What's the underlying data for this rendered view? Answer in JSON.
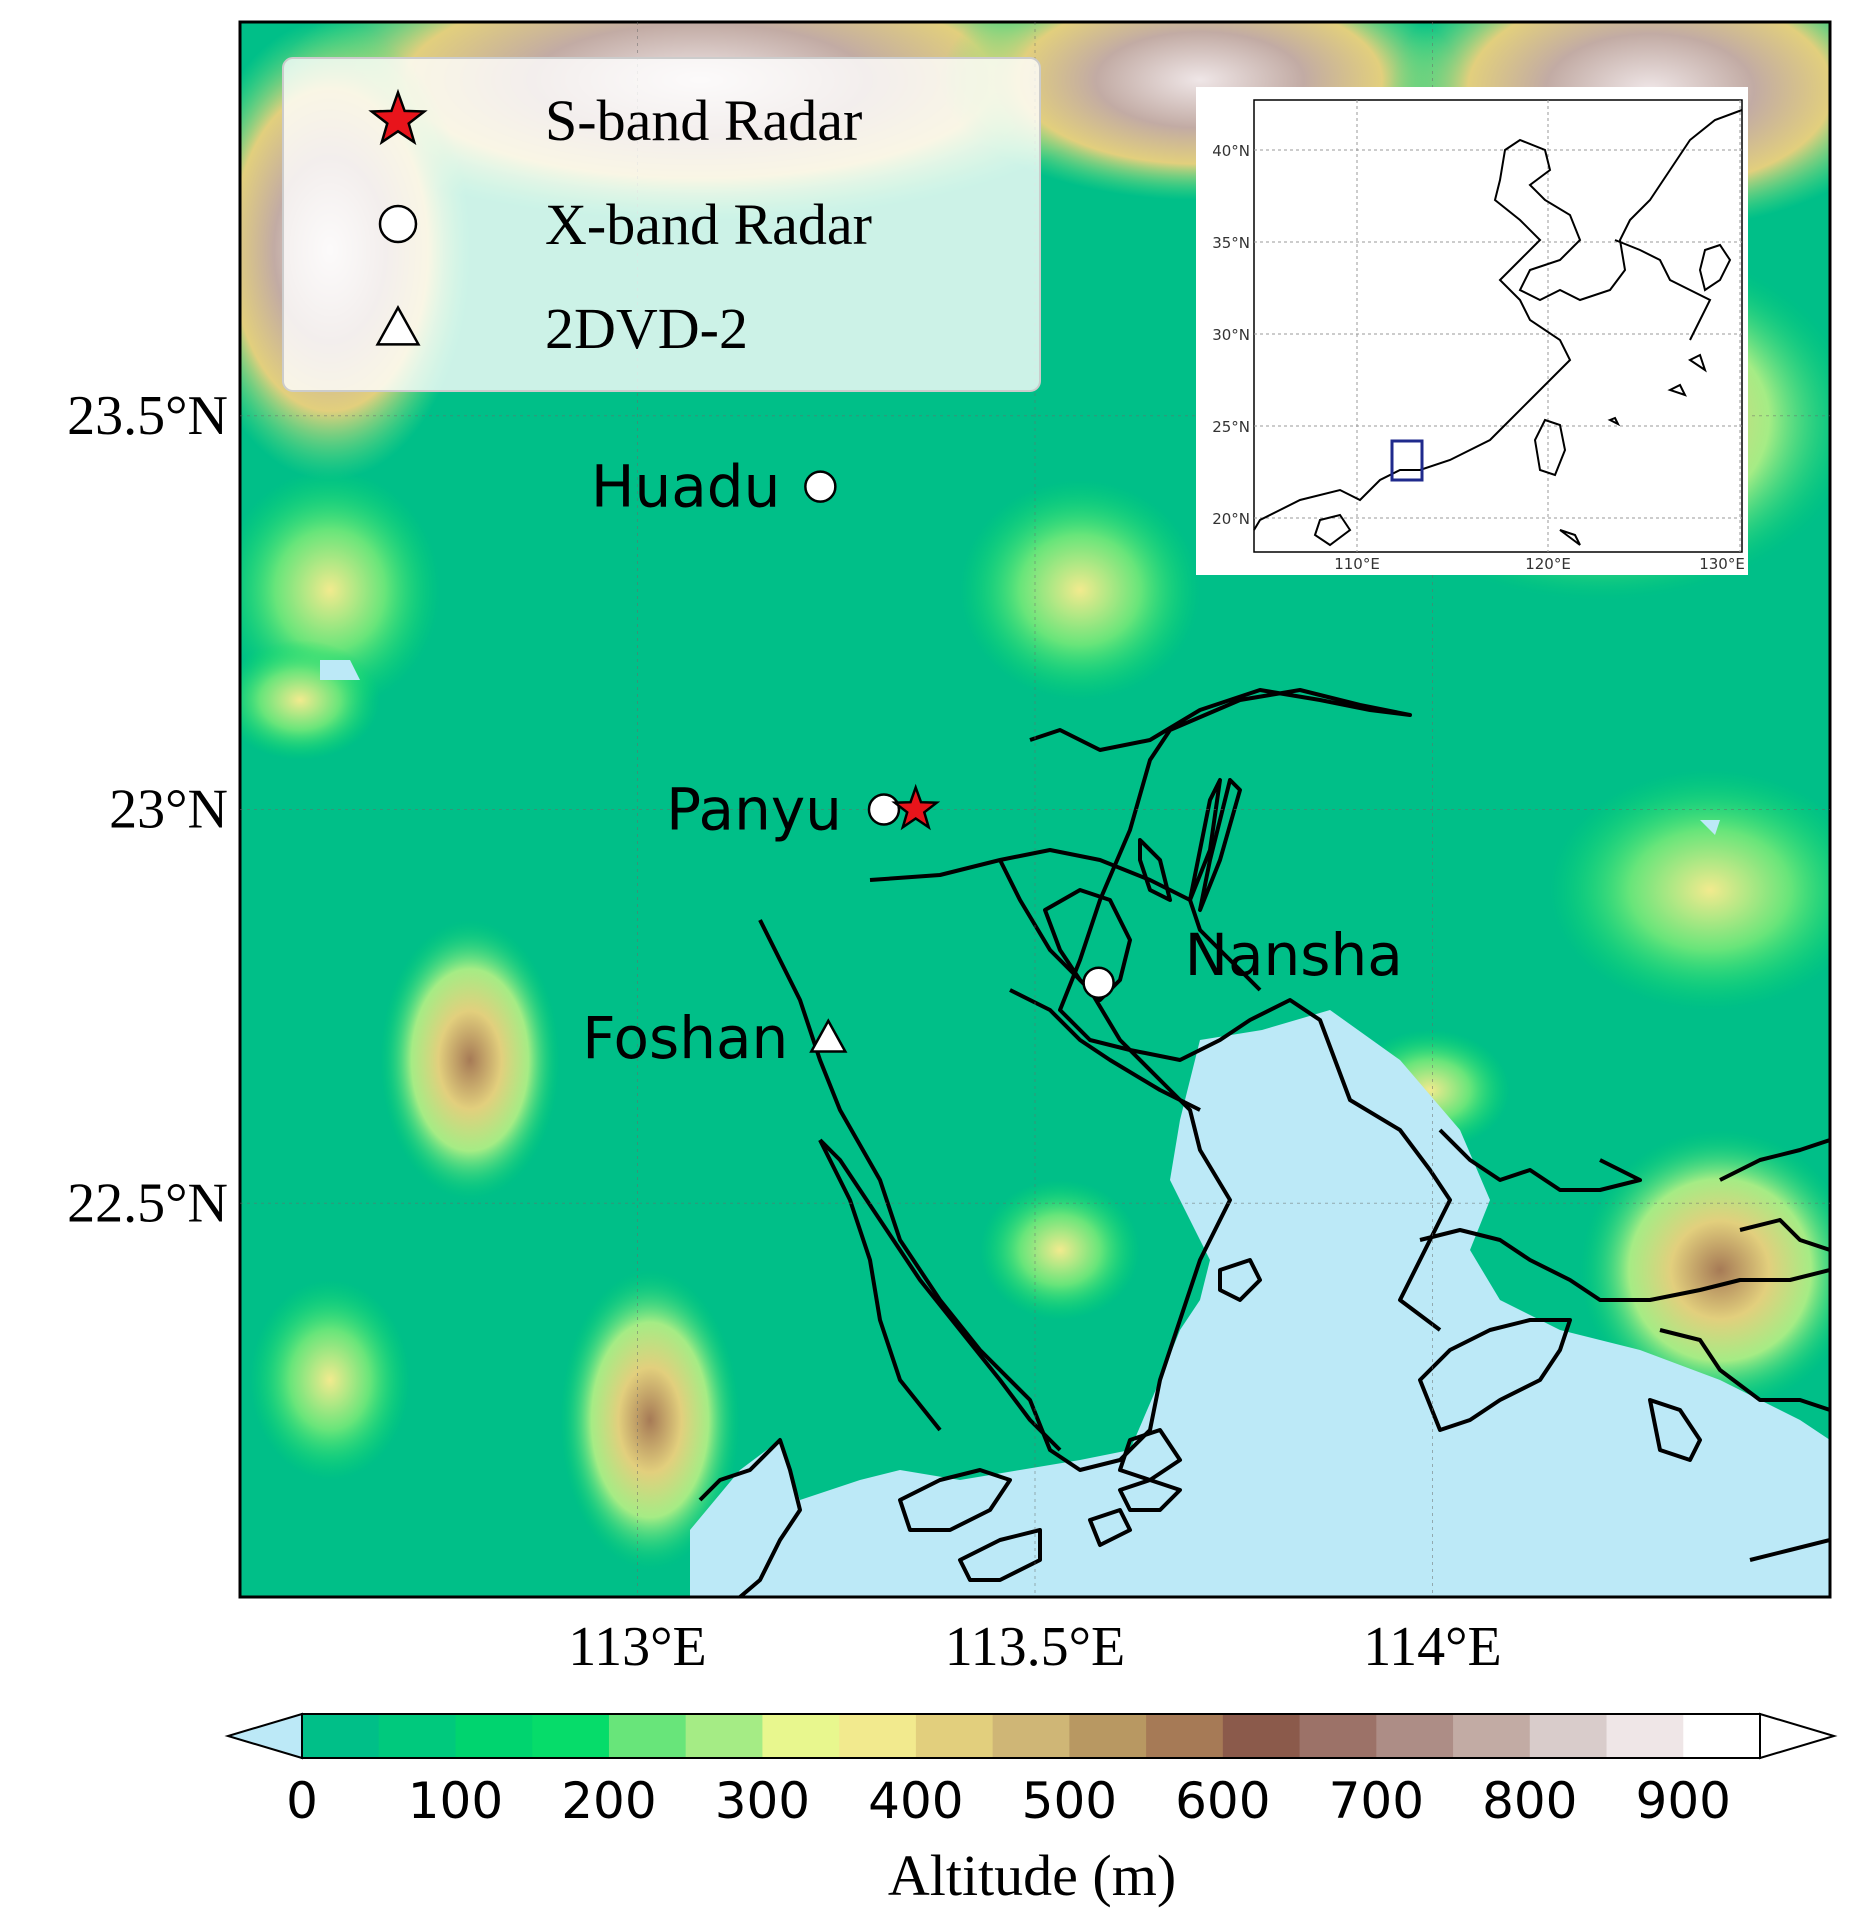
{
  "map": {
    "lat_ticks": [
      "23.5°N",
      "23°N",
      "22.5°N"
    ],
    "lon_ticks": [
      "113°E",
      "113.5°E",
      "114°E"
    ],
    "lat_tick_values": [
      23.5,
      23.0,
      22.5
    ],
    "lon_tick_values": [
      113.0,
      113.5,
      114.0
    ],
    "extent": {
      "lon_min": 112.5,
      "lon_max": 114.5,
      "lat_min": 22.0,
      "lat_max": 24.0
    },
    "land_color": "#00bf88",
    "water_color": "#bce9f7"
  },
  "legend": {
    "items": [
      {
        "label": "S-band Radar",
        "marker": "star",
        "color": "#e8141b"
      },
      {
        "label": "X-band Radar",
        "marker": "circle",
        "color": "#ffffff"
      },
      {
        "label": "2DVD-2",
        "marker": "triangle",
        "color": "#ffffff"
      }
    ]
  },
  "stations": [
    {
      "name": "Huadu",
      "type": "X-band Radar",
      "lon": 113.23,
      "lat": 23.41
    },
    {
      "name": "Panyu",
      "type": "X-band Radar",
      "lon": 113.31,
      "lat": 23.0
    },
    {
      "name": "S-band",
      "type": "S-band Radar",
      "lon": 113.35,
      "lat": 23.0
    },
    {
      "name": "Nansha",
      "type": "X-band Radar",
      "lon": 113.58,
      "lat": 22.78
    },
    {
      "name": "Foshan",
      "type": "2DVD-2",
      "lon": 113.24,
      "lat": 22.71
    }
  ],
  "station_labels": [
    "Huadu",
    "Panyu",
    "Nansha",
    "Foshan"
  ],
  "inset": {
    "lat_ticks": [
      "40°N",
      "35°N",
      "30°N",
      "25°N",
      "20°N"
    ],
    "lon_ticks": [
      "110°E",
      "120°E",
      "130°E"
    ],
    "box_color": "#1f2a8c"
  },
  "colorbar": {
    "ticks": [
      "0",
      "100",
      "200",
      "300",
      "400",
      "500",
      "600",
      "700",
      "800",
      "900"
    ],
    "label": "Altitude (m)",
    "colors": [
      "#00bf88",
      "#00c97d",
      "#00d46f",
      "#06dc6a",
      "#68e57a",
      "#a5ec85",
      "#e8f78e",
      "#f2ea8e",
      "#e2cf7d",
      "#cfb676",
      "#b89862",
      "#a67a56",
      "#8b5a4b",
      "#9c7268",
      "#ad8d86",
      "#c2aba4",
      "#d9cccb",
      "#efe6e7",
      "#ffffff"
    ],
    "under_color": "#bce9f7",
    "over_color": "#ffffff"
  }
}
